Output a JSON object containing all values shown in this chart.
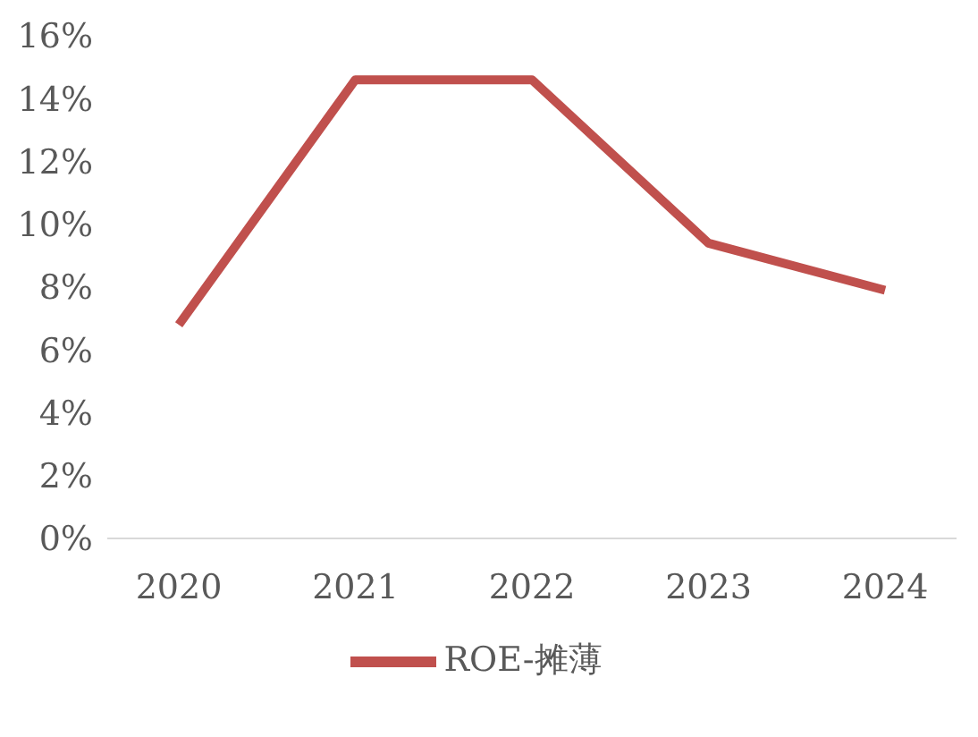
{
  "chart_data": {
    "type": "line",
    "categories": [
      "2020",
      "2021",
      "2022",
      "2023",
      "2024"
    ],
    "series": [
      {
        "name": "ROE-摊薄",
        "color": "#c0504d",
        "values": [
          6.8,
          14.6,
          14.6,
          9.4,
          7.9
        ]
      }
    ],
    "ylim": [
      0,
      16
    ],
    "yticks": [
      {
        "value": 0,
        "label": "0%"
      },
      {
        "value": 2,
        "label": "2%"
      },
      {
        "value": 4,
        "label": "4%"
      },
      {
        "value": 6,
        "label": "6%"
      },
      {
        "value": 8,
        "label": "8%"
      },
      {
        "value": 10,
        "label": "10%"
      },
      {
        "value": 12,
        "label": "12%"
      },
      {
        "value": 14,
        "label": "14%"
      },
      {
        "value": 16,
        "label": "16%"
      }
    ],
    "grid": false,
    "legend": "bottom",
    "marker": "none",
    "line_style": "solid"
  }
}
